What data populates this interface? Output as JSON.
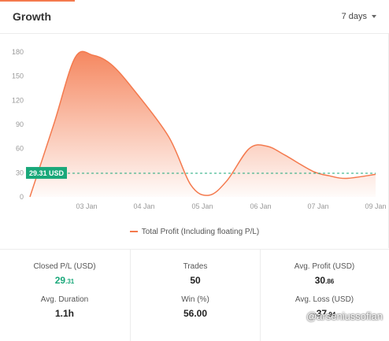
{
  "header": {
    "title": "Growth",
    "range_label": "7 days"
  },
  "chart_data": {
    "type": "area",
    "title": "Growth",
    "xlabel": "",
    "ylabel": "",
    "x_ticks": [
      "03 Jan",
      "04 Jan",
      "05 Jan",
      "06 Jan",
      "07 Jan",
      "09 Jan"
    ],
    "y_ticks": [
      0,
      30,
      60,
      90,
      120,
      150,
      180
    ],
    "ylim": [
      0,
      180
    ],
    "series": [
      {
        "name": "Total Profit (Including floating P/L)",
        "color": "#f47a4e",
        "points": [
          {
            "x": "02 Jan",
            "y": 0
          },
          {
            "x": "02 Jan",
            "y": 90
          },
          {
            "x": "03 Jan",
            "y": 173
          },
          {
            "x": "03 Jan",
            "y": 176
          },
          {
            "x": "03 Jan",
            "y": 165
          },
          {
            "x": "04 Jan",
            "y": 135
          },
          {
            "x": "04 Jan",
            "y": 75
          },
          {
            "x": "05 Jan",
            "y": 15
          },
          {
            "x": "05 Jan",
            "y": 2
          },
          {
            "x": "05 Jan",
            "y": 20
          },
          {
            "x": "06 Jan",
            "y": 60
          },
          {
            "x": "06 Jan",
            "y": 63
          },
          {
            "x": "06 Jan",
            "y": 52
          },
          {
            "x": "07 Jan",
            "y": 32
          },
          {
            "x": "07 Jan",
            "y": 26
          },
          {
            "x": "08 Jan",
            "y": 23
          },
          {
            "x": "09 Jan",
            "y": 28
          }
        ]
      }
    ],
    "reference_line": {
      "value": 29.31,
      "label": "29.31 USD",
      "color": "#1aa87a",
      "style": "dashed"
    },
    "grid": false,
    "legend": "bottom"
  },
  "legend": {
    "label": "Total Profit (Including floating P/L)"
  },
  "stats": {
    "closed_pl": {
      "label": "Closed P/L (USD)",
      "int": "29",
      "dec": ".31"
    },
    "trades": {
      "label": "Trades",
      "value": "50"
    },
    "avg_profit": {
      "label": "Avg. Profit (USD)",
      "int": "30",
      "dec": ".86"
    },
    "avg_duration": {
      "label": "Avg. Duration",
      "value": "1.1h"
    },
    "win": {
      "label": "Win (%)",
      "value": "56.00"
    },
    "avg_loss": {
      "label": "Avg. Loss (USD)",
      "int": "-37",
      "dec": ".94"
    }
  },
  "watermark": "@arseniussofian"
}
